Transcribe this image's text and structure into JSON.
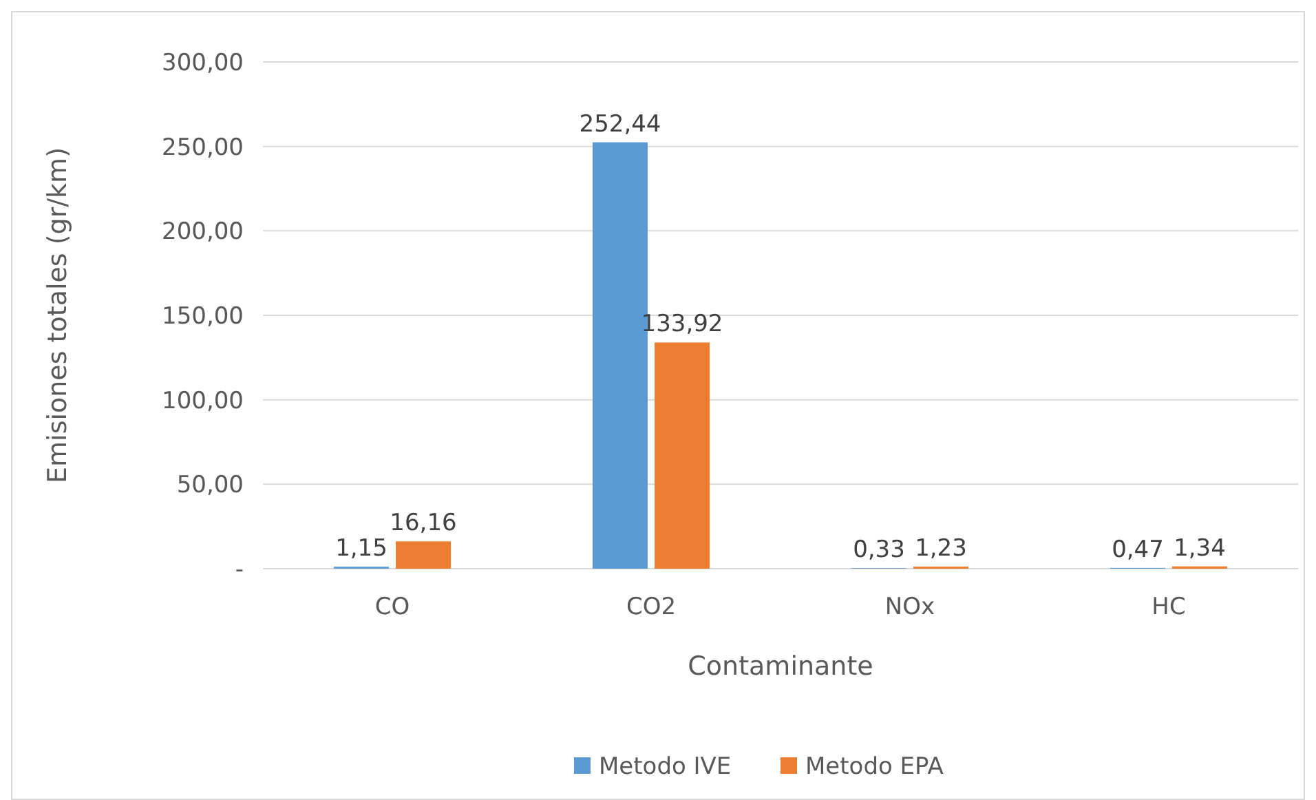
{
  "chart_data": {
    "type": "bar",
    "xlabel": "Contaminante",
    "ylabel": "Emisiones totales (gr/km)",
    "categories": [
      "CO",
      "CO2",
      "NOx",
      "HC"
    ],
    "series": [
      {
        "name": "Metodo IVE",
        "color": "#5b9bd5",
        "values": [
          1.15,
          252.44,
          0.33,
          0.47
        ],
        "value_labels": [
          "1,15",
          "252,44",
          "0,33",
          "0,47"
        ]
      },
      {
        "name": "Metodo EPA",
        "color": "#ed7d31",
        "values": [
          16.16,
          133.92,
          1.23,
          1.34
        ],
        "value_labels": [
          "16,16",
          "133,92",
          "1,23",
          "1,34"
        ]
      }
    ],
    "ylim": [
      0,
      300
    ],
    "yticks": [
      {
        "value": 0,
        "label": "-"
      },
      {
        "value": 50,
        "label": "50,00"
      },
      {
        "value": 100,
        "label": "100,00"
      },
      {
        "value": 150,
        "label": "150,00"
      },
      {
        "value": 200,
        "label": "200,00"
      },
      {
        "value": 250,
        "label": "250,00"
      },
      {
        "value": 300,
        "label": "300,00"
      }
    ],
    "grid": "y",
    "legend": "bottom"
  }
}
